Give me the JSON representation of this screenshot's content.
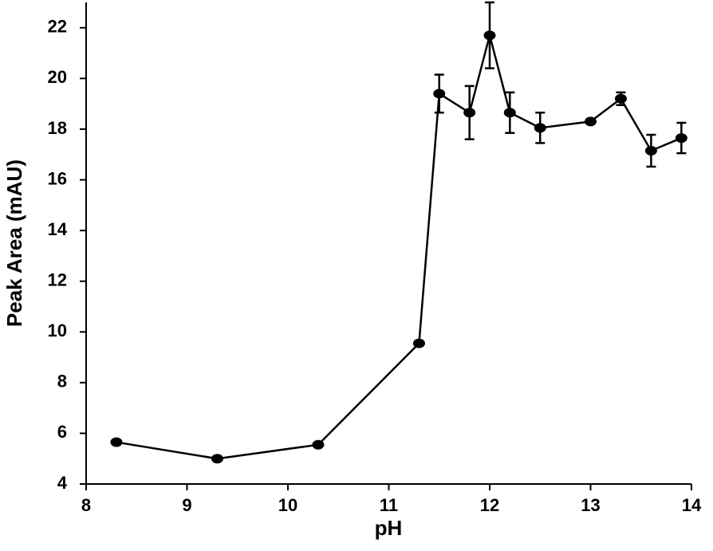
{
  "chart_data": {
    "type": "line",
    "x_label": "pH",
    "y_label": "Peak Area (mAU)",
    "x": [
      8.3,
      9.3,
      10.3,
      11.3,
      11.5,
      11.8,
      12.0,
      12.2,
      12.5,
      13.0,
      13.3,
      13.6,
      13.9
    ],
    "values": [
      5.65,
      5.0,
      5.55,
      9.55,
      19.4,
      18.65,
      21.7,
      18.65,
      18.05,
      18.3,
      19.2,
      17.15,
      17.65
    ],
    "errors": [
      null,
      null,
      null,
      null,
      0.75,
      1.05,
      1.3,
      0.8,
      0.6,
      null,
      0.25,
      0.63,
      0.6
    ],
    "color": "#000000",
    "xlim": [
      8,
      14
    ],
    "xticks": [
      8,
      9,
      10,
      11,
      12,
      13,
      14
    ],
    "ylim": [
      4,
      23
    ],
    "yticks": [
      4,
      6,
      8,
      10,
      12,
      14,
      16,
      18,
      20,
      22
    ],
    "grid": false
  }
}
